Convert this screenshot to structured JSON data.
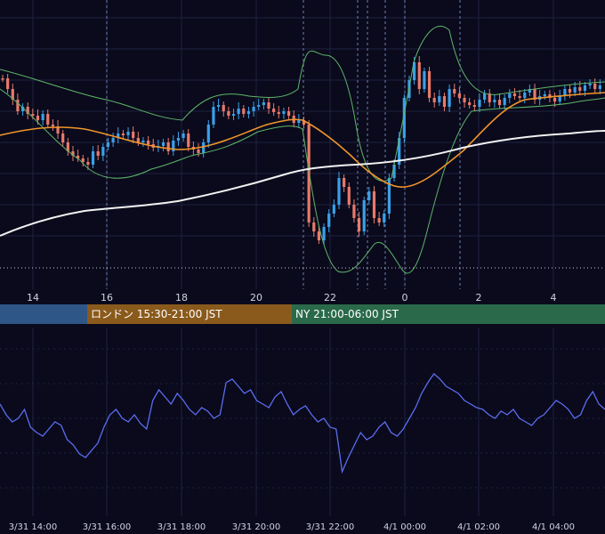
{
  "colors": {
    "background": "#0a0a1c",
    "grid": "#1f2340",
    "session_line": "#6a7fb0",
    "candle_up": "#3aa0e8",
    "candle_down": "#e87a6a",
    "bollinger": "#5fb56a",
    "ma_short": "#f0952a",
    "ma_long": "#f2f2f2",
    "oscillator": "#5b6cf0",
    "session_asia": "#2e5686",
    "session_london": "#8a5a1c",
    "session_ny": "#2a6a4a"
  },
  "price_axis": {
    "ticks": [
      "14",
      "16",
      "18",
      "20",
      "22",
      "0",
      "2",
      "4"
    ]
  },
  "sessions": [
    {
      "name": "asia",
      "label": ""
    },
    {
      "name": "london",
      "label": "ロンドン 15:30-21:00 JST"
    },
    {
      "name": "ny",
      "label": "NY 21:00-06:00 JST"
    }
  ],
  "time_axis": {
    "ticks": [
      "3/31 14:00",
      "3/31 16:00",
      "3/31 18:00",
      "3/31 20:00",
      "3/31 22:00",
      "4/1 00:00",
      "4/1 02:00",
      "4/1 04:00"
    ]
  },
  "chart_data": [
    {
      "type": "candlestick",
      "x_ticks": [
        "14",
        "16",
        "18",
        "20",
        "22",
        "0",
        "2",
        "4"
      ],
      "indicators": [
        "bollinger_bands",
        "ma_short",
        "ma_long"
      ],
      "grid": true,
      "note_levels": "dotted horizontal line near panel bottom"
    },
    {
      "type": "line",
      "series": [
        {
          "values": [
            58,
            52,
            48,
            50,
            55,
            45,
            42,
            40,
            44,
            48,
            46,
            38,
            35,
            30,
            28,
            32,
            36,
            45,
            52,
            55,
            50,
            48,
            52,
            47,
            44,
            60,
            66,
            62,
            58,
            64,
            60,
            55,
            52,
            56,
            54,
            50,
            52,
            70,
            72,
            68,
            64,
            66,
            60,
            58,
            56,
            62,
            65,
            58,
            52,
            55,
            57,
            52,
            48,
            50,
            45,
            44,
            20,
            28,
            35,
            42,
            38,
            40,
            45,
            48,
            42,
            40,
            44,
            50,
            56,
            64,
            70,
            75,
            72,
            68,
            66,
            64,
            60,
            58,
            56,
            55,
            52,
            50,
            54,
            52,
            55,
            50,
            48,
            46,
            50,
            52,
            56,
            60,
            58,
            55,
            50,
            52,
            60,
            65,
            58,
            55
          ]
        }
      ],
      "x_ticks": [
        "3/31 14:00",
        "3/31 16:00",
        "3/31 18:00",
        "3/31 20:00",
        "3/31 22:00",
        "4/1 00:00",
        "4/1 02:00",
        "4/1 04:00"
      ],
      "grid": true
    }
  ]
}
